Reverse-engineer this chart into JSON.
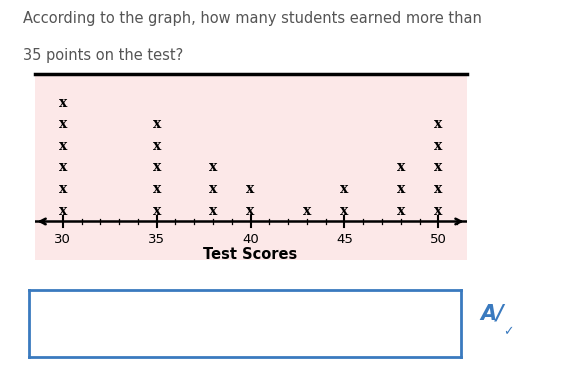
{
  "question_text_line1": "According to the graph, how many students earned more than",
  "question_text_line2": "35 points on the test?",
  "plot_bg_color": "#fce8e8",
  "axis_label": "Test Scores",
  "x_min": 28.5,
  "x_max": 51.5,
  "x_ticks": [
    30,
    35,
    40,
    45,
    50
  ],
  "dot_plot_data": {
    "30": 6,
    "35": 5,
    "38": 3,
    "40": 2,
    "43": 1,
    "45": 2,
    "48": 3,
    "50": 5
  },
  "answer_box_color": "#3a7abf",
  "answer_box_bg": "#ffffff",
  "figure_bg": "#ffffff",
  "text_color": "#555555"
}
